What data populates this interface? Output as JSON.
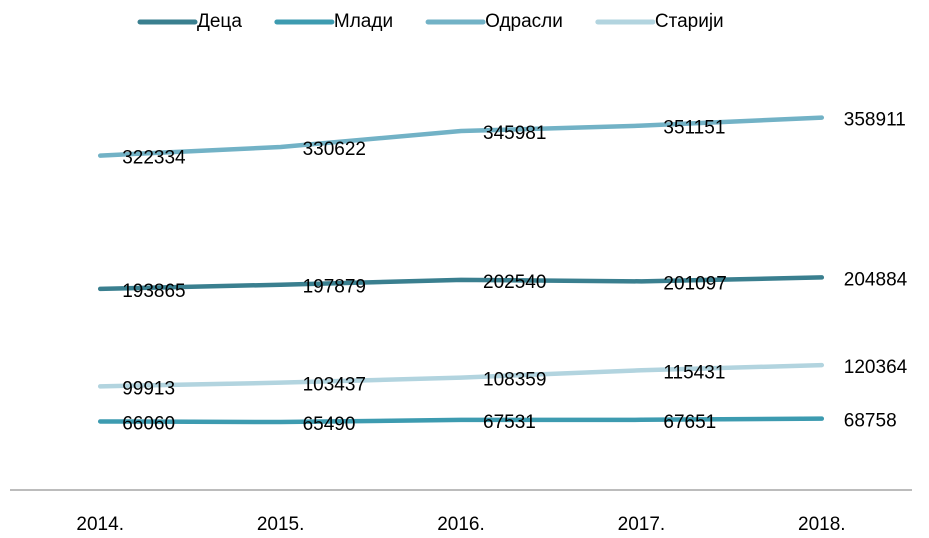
{
  "chart_data": {
    "type": "line",
    "categories": [
      "2014.",
      "2015.",
      "2016.",
      "2017.",
      "2018."
    ],
    "series": [
      {
        "name": "Деца",
        "color": "#3a7f8f",
        "values": [
          193865,
          197879,
          202540,
          201097,
          204884
        ]
      },
      {
        "name": "Млади",
        "color": "#3d9bb0",
        "values": [
          66060,
          65490,
          67531,
          67651,
          68758
        ]
      },
      {
        "name": "Одрасли",
        "color": "#72b2c6",
        "values": [
          322334,
          330622,
          345981,
          351151,
          358911
        ]
      },
      {
        "name": "Старији",
        "color": "#b2d4df",
        "values": [
          99913,
          103437,
          108359,
          115431,
          120364
        ]
      }
    ],
    "ylim": [
      0,
      400000
    ],
    "legend": "top"
  }
}
